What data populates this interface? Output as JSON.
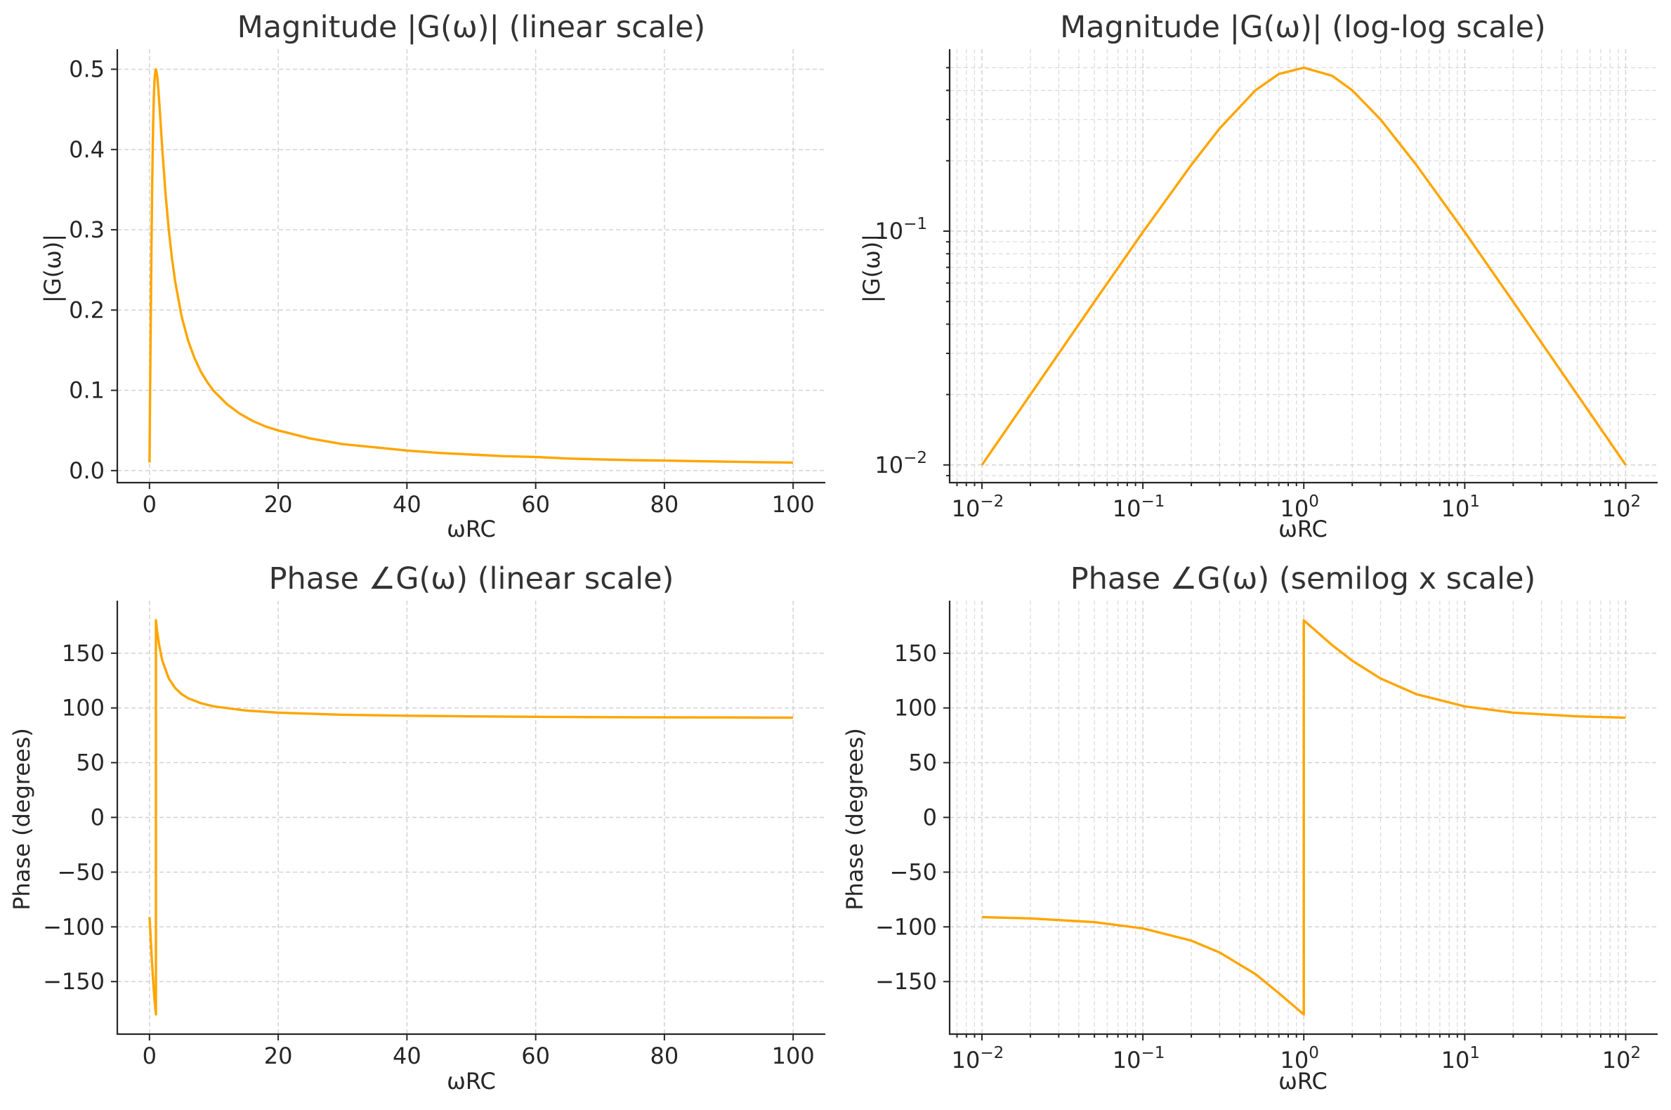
{
  "figure": {
    "accent_color": "#FFA500"
  },
  "chart_data": [
    {
      "id": "mag_lin",
      "type": "line",
      "title": "Magnitude |G(ω)| (linear scale)",
      "xlabel": "ωRC",
      "ylabel": "|G(ω)|",
      "xscale": "linear",
      "yscale": "linear",
      "xlim": [
        -5,
        105
      ],
      "ylim": [
        -0.015,
        0.525
      ],
      "xticks": [
        0,
        20,
        40,
        60,
        80,
        100
      ],
      "xtick_labels": [
        "0",
        "20",
        "40",
        "60",
        "80",
        "100"
      ],
      "yticks": [
        0.0,
        0.1,
        0.2,
        0.3,
        0.4,
        0.5
      ],
      "ytick_labels": [
        "0.0",
        "0.1",
        "0.2",
        "0.3",
        "0.4",
        "0.5"
      ],
      "grid": true,
      "series": [
        {
          "color": "#FFA500",
          "x": [
            0.01,
            0.1,
            0.2,
            0.3,
            0.4,
            0.5,
            0.6,
            0.7,
            0.8,
            0.9,
            1.0,
            1.2,
            1.4,
            1.6,
            1.8,
            2,
            2.5,
            3,
            3.5,
            4,
            5,
            6,
            7,
            8,
            9,
            10,
            12,
            14,
            16,
            18,
            20,
            25,
            30,
            35,
            40,
            45,
            50,
            55,
            60,
            65,
            70,
            75,
            80,
            85,
            90,
            95,
            100
          ],
          "y": [
            0.01,
            0.099,
            0.192,
            0.275,
            0.345,
            0.4,
            0.441,
            0.47,
            0.488,
            0.497,
            0.5,
            0.492,
            0.473,
            0.449,
            0.424,
            0.4,
            0.345,
            0.3,
            0.264,
            0.235,
            0.192,
            0.162,
            0.14,
            0.123,
            0.11,
            0.099,
            0.083,
            0.071,
            0.062,
            0.055,
            0.05,
            0.04,
            0.033,
            0.029,
            0.025,
            0.022,
            0.02,
            0.018,
            0.017,
            0.015,
            0.014,
            0.013,
            0.0125,
            0.0118,
            0.0111,
            0.0105,
            0.01
          ]
        }
      ]
    },
    {
      "id": "mag_log",
      "type": "line",
      "title": "Magnitude |G(ω)| (log-log scale)",
      "xlabel": "ωRC",
      "ylabel": "|G(ω)|",
      "xscale": "log",
      "yscale": "log",
      "xlim": [
        0.0063,
        158
      ],
      "ylim": [
        0.0084,
        0.6
      ],
      "xticks": [
        0.01,
        0.1,
        1,
        10,
        100
      ],
      "xtick_labels": [
        [
          "10",
          "−2"
        ],
        [
          "10",
          "−1"
        ],
        [
          "10",
          "0"
        ],
        [
          "10",
          "1"
        ],
        [
          "10",
          "2"
        ]
      ],
      "yticks": [
        0.01,
        0.1
      ],
      "ytick_labels": [
        [
          "10",
          "−2"
        ],
        [
          "10",
          "−1"
        ]
      ],
      "grid": true,
      "series": [
        {
          "color": "#FFA500",
          "x": [
            0.01,
            0.02,
            0.05,
            0.1,
            0.2,
            0.3,
            0.5,
            0.7,
            1,
            1.5,
            2,
            3,
            5,
            10,
            20,
            50,
            100
          ],
          "y": [
            0.01,
            0.02,
            0.0499,
            0.099,
            0.192,
            0.275,
            0.4,
            0.47,
            0.5,
            0.4615,
            0.4,
            0.3,
            0.192,
            0.099,
            0.0499,
            0.02,
            0.01
          ]
        }
      ]
    },
    {
      "id": "phase_lin",
      "type": "line",
      "title": "Phase ∠G(ω) (linear scale)",
      "xlabel": "ωRC",
      "ylabel": "Phase (degrees)",
      "xscale": "linear",
      "yscale": "linear",
      "xlim": [
        -5,
        105
      ],
      "ylim": [
        -198,
        198
      ],
      "xticks": [
        0,
        20,
        40,
        60,
        80,
        100
      ],
      "xtick_labels": [
        "0",
        "20",
        "40",
        "60",
        "80",
        "100"
      ],
      "yticks": [
        -150,
        -100,
        -50,
        0,
        50,
        100,
        150
      ],
      "ytick_labels": [
        "−150",
        "−100",
        "−50",
        "0",
        "50",
        "100",
        "150"
      ],
      "grid": true,
      "series": [
        {
          "color": "#FFA500",
          "x": [
            0.01,
            0.2,
            0.4,
            0.6,
            0.8,
            0.9,
            1.0,
            1.0,
            1.1,
            1.2,
            1.5,
            2,
            3,
            4,
            5,
            6,
            8,
            10,
            15,
            20,
            30,
            40,
            50,
            60,
            70,
            80,
            90,
            100
          ],
          "y": [
            -91.1,
            -112.6,
            -133.6,
            -151.9,
            -167.3,
            -174.0,
            -180.0,
            180.0,
            174.5,
            169.6,
            157.4,
            143.1,
            126.9,
            118.1,
            112.6,
            108.9,
            104.3,
            101.4,
            97.6,
            95.7,
            93.8,
            92.9,
            92.3,
            91.9,
            91.6,
            91.4,
            91.3,
            91.1
          ]
        }
      ]
    },
    {
      "id": "phase_semilog",
      "type": "line",
      "title": "Phase ∠G(ω) (semilog x scale)",
      "xlabel": "ωRC",
      "ylabel": "Phase (degrees)",
      "xscale": "log",
      "yscale": "linear",
      "xlim": [
        0.0063,
        158
      ],
      "ylim": [
        -198,
        198
      ],
      "xticks": [
        0.01,
        0.1,
        1,
        10,
        100
      ],
      "xtick_labels": [
        [
          "10",
          "−2"
        ],
        [
          "10",
          "−1"
        ],
        [
          "10",
          "0"
        ],
        [
          "10",
          "1"
        ],
        [
          "10",
          "2"
        ]
      ],
      "yticks": [
        -150,
        -100,
        -50,
        0,
        50,
        100,
        150
      ],
      "ytick_labels": [
        "−150",
        "−100",
        "−50",
        "0",
        "50",
        "100",
        "150"
      ],
      "grid": true,
      "series": [
        {
          "color": "#FFA500",
          "x": [
            0.01,
            0.02,
            0.05,
            0.1,
            0.2,
            0.3,
            0.5,
            0.7,
            1.0,
            1.0,
            1.5,
            2,
            3,
            5,
            10,
            20,
            50,
            100
          ],
          "y": [
            -91.1,
            -92.3,
            -95.7,
            -101.4,
            -112.6,
            -123.4,
            -143.1,
            -160.6,
            -180.0,
            180.0,
            157.4,
            143.1,
            126.9,
            112.6,
            101.4,
            95.7,
            92.3,
            91.1
          ]
        }
      ]
    }
  ]
}
